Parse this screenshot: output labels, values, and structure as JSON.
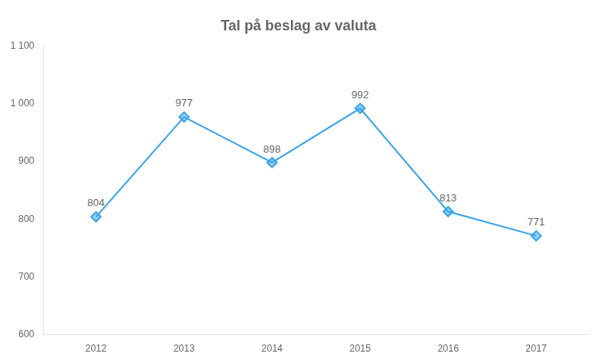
{
  "chart_data": {
    "type": "line",
    "title": "Tal på beslag av valuta",
    "x": [
      2012,
      2013,
      2014,
      2015,
      2016,
      2017
    ],
    "values": [
      804,
      977,
      898,
      992,
      813,
      771
    ],
    "xlim": [
      2011.4,
      2017.6
    ],
    "xticks": [
      2012,
      2013,
      2014,
      2015,
      2016,
      2017
    ],
    "ylim": [
      600,
      1100
    ],
    "yticks": [
      600,
      700,
      800,
      900,
      {
        "value": 1000,
        "label": "1 000"
      },
      {
        "value": 1100,
        "label": "1 100"
      }
    ],
    "grid": false,
    "marker": "diamond",
    "data_labels": true
  }
}
